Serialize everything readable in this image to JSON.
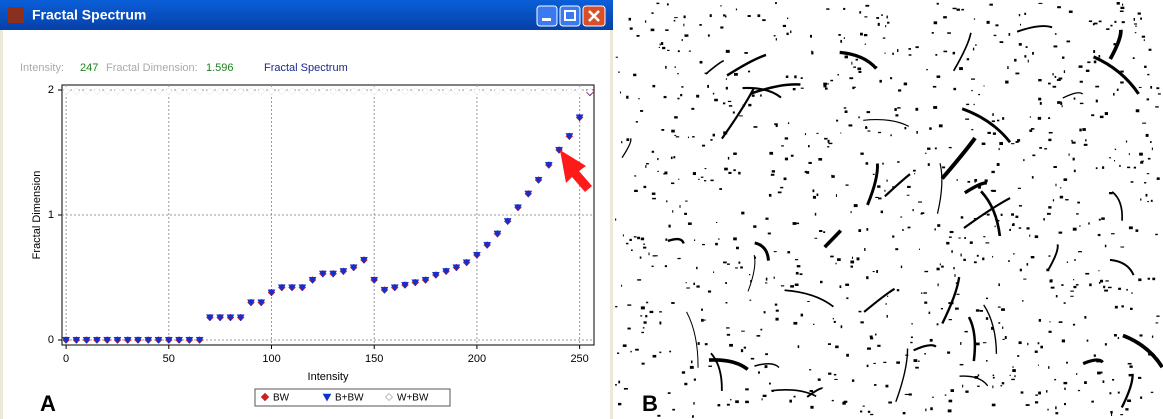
{
  "window": {
    "title": "Fractal Spectrum"
  },
  "info": {
    "intensity_label": "Intensity:",
    "intensity": 247,
    "fd_label": "Fractal Dimension:",
    "fd": 1.596,
    "spectrum_label": "Fractal Spectrum"
  },
  "panel_labels": [
    "A",
    "B"
  ],
  "chart_data": {
    "type": "scatter",
    "x_label": "Intensity",
    "y_label": "Fractal Dimension",
    "x": [
      0,
      5,
      10,
      15,
      20,
      25,
      30,
      35,
      40,
      45,
      50,
      55,
      60,
      65,
      70,
      75,
      80,
      85,
      90,
      95,
      100,
      105,
      110,
      115,
      120,
      125,
      130,
      135,
      140,
      145,
      150,
      155,
      160,
      165,
      170,
      175,
      180,
      185,
      190,
      195,
      200,
      205,
      210,
      215,
      220,
      225,
      230,
      235,
      240,
      245,
      250,
      255
    ],
    "series": [
      {
        "name": "BW",
        "color": "#cc2020",
        "marker": "diamond",
        "values": [
          0,
          0,
          0,
          0,
          0,
          0,
          0,
          0,
          0,
          0,
          0,
          0,
          0,
          0,
          0.18,
          0.18,
          0.18,
          0.18,
          0.3,
          0.3,
          0.38,
          0.42,
          0.42,
          0.42,
          0.48,
          0.53,
          0.53,
          0.55,
          0.58,
          0.64,
          0.48,
          0.4,
          0.42,
          0.44,
          0.46,
          0.48,
          0.52,
          0.55,
          0.58,
          0.62,
          0.68,
          0.76,
          0.85,
          0.95,
          1.06,
          1.17,
          1.28,
          1.4,
          1.52,
          1.63,
          1.78,
          1.98
        ]
      },
      {
        "name": "B+BW",
        "color": "#1030d0",
        "marker": "triangle",
        "values": [
          0,
          0,
          0,
          0,
          0,
          0,
          0,
          0,
          0,
          0,
          0,
          0,
          0,
          0,
          0.18,
          0.18,
          0.18,
          0.18,
          0.3,
          0.3,
          0.38,
          0.42,
          0.42,
          0.42,
          0.48,
          0.53,
          0.53,
          0.55,
          0.58,
          0.64,
          0.48,
          0.4,
          0.42,
          0.44,
          0.46,
          0.48,
          0.52,
          0.55,
          0.58,
          0.62,
          0.68,
          0.76,
          0.85,
          0.95,
          1.06,
          1.17,
          1.28,
          1.4,
          1.52,
          1.63,
          1.78,
          1.98
        ]
      },
      {
        "name": "W+BW",
        "color": "#ffffff",
        "marker": "diamond",
        "values": [
          1.99,
          1.99,
          1.99,
          1.99,
          1.99,
          1.99,
          1.99,
          1.99,
          1.99,
          1.99,
          1.99,
          1.99,
          1.99,
          1.99,
          1.99,
          1.99,
          1.99,
          1.99,
          1.99,
          1.99,
          1.99,
          1.99,
          1.99,
          1.99,
          1.99,
          1.99,
          1.99,
          1.99,
          1.99,
          1.99,
          1.99,
          1.99,
          1.99,
          1.99,
          1.99,
          1.99,
          1.99,
          1.99,
          1.99,
          1.99,
          1.99,
          1.99,
          1.99,
          1.99,
          1.99,
          1.99,
          1.99,
          1.99,
          1.99,
          1.99,
          1.99,
          1.99
        ]
      }
    ],
    "xlim": [
      -2,
      257
    ],
    "ylim": [
      -0.04,
      2.04
    ],
    "xticks": [
      0,
      50,
      100,
      150,
      200,
      250
    ],
    "yticks": [
      0,
      1,
      2
    ],
    "grid": true
  }
}
